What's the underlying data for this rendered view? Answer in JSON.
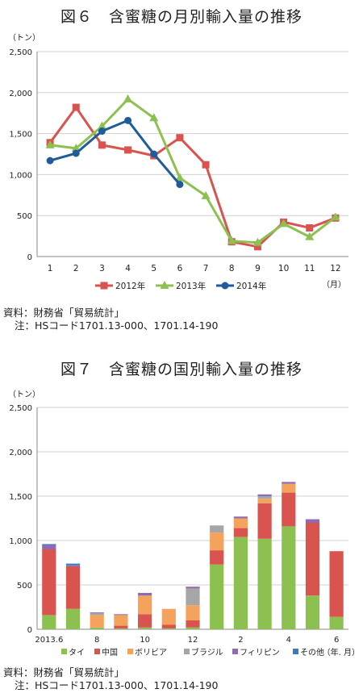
{
  "chart_data": [
    {
      "type": "line",
      "title": "図６　含蜜糖の月別輸入量の推移",
      "ylabel": "（トン）",
      "xlabel": "（月）",
      "x": [
        1,
        2,
        3,
        4,
        5,
        6,
        7,
        8,
        9,
        10,
        11,
        12
      ],
      "ylim": [
        0,
        2500
      ],
      "yticks": [
        0,
        500,
        1000,
        1500,
        2000,
        2500
      ],
      "ytick_labels": [
        "0",
        "500",
        "1,000",
        "1,500",
        "2,000",
        "2,500"
      ],
      "grid": true,
      "legend_position": "bottom",
      "series": [
        {
          "name": "2012年",
          "color": "#d9534f",
          "marker": "square",
          "values": [
            1390,
            1820,
            1360,
            1300,
            1230,
            1450,
            1120,
            180,
            120,
            420,
            350,
            470
          ]
        },
        {
          "name": "2013年",
          "color": "#8cc152",
          "marker": "triangle",
          "values": [
            1360,
            1320,
            1590,
            1920,
            1690,
            960,
            740,
            190,
            170,
            400,
            240,
            480
          ]
        },
        {
          "name": "2014年",
          "color": "#1f5c99",
          "marker": "circle",
          "values": [
            1170,
            1260,
            1530,
            1660,
            1250,
            880,
            null,
            null,
            null,
            null,
            null,
            null
          ]
        }
      ],
      "notes": [
        "資料：財務省「貿易統計」",
        "注：HSコード1701.13-000、1701.14-190"
      ]
    },
    {
      "type": "bar",
      "stacked": true,
      "title": "図７　含蜜糖の国別輸入量の推移",
      "ylabel": "（トン）",
      "xlabel": "（年. 月）",
      "categories": [
        "2013.6",
        "7",
        "8",
        "9",
        "10",
        "11",
        "12",
        "1",
        "2",
        "3",
        "4",
        "5",
        "6"
      ],
      "tick_labels": [
        "2013.6",
        "",
        "8",
        "",
        "10",
        "",
        "12",
        "",
        "2",
        "",
        "4",
        "",
        "6"
      ],
      "ylim": [
        0,
        2500
      ],
      "yticks": [
        0,
        500,
        1000,
        1500,
        2000,
        2500
      ],
      "ytick_labels": [
        "0",
        "500",
        "1,000",
        "1,500",
        "2,000",
        "2,500"
      ],
      "grid": true,
      "legend_position": "bottom",
      "series": [
        {
          "name": "タイ",
          "color": "#8cc152",
          "values": [
            160,
            230,
            20,
            10,
            20,
            10,
            20,
            730,
            1040,
            1020,
            1160,
            380,
            140
          ]
        },
        {
          "name": "中国",
          "color": "#d9534f",
          "values": [
            740,
            480,
            0,
            30,
            150,
            40,
            80,
            160,
            100,
            400,
            380,
            820,
            740
          ]
        },
        {
          "name": "ボリビア",
          "color": "#f5a35c",
          "values": [
            0,
            0,
            140,
            120,
            210,
            180,
            170,
            200,
            110,
            50,
            100,
            0,
            0
          ]
        },
        {
          "name": "ブラジル",
          "color": "#a6a6a6",
          "values": [
            0,
            0,
            20,
            0,
            0,
            0,
            190,
            80,
            0,
            30,
            0,
            0,
            0
          ]
        },
        {
          "name": "フィリピン",
          "color": "#8e6bb3",
          "values": [
            50,
            10,
            10,
            10,
            30,
            0,
            20,
            0,
            20,
            20,
            20,
            40,
            0
          ]
        },
        {
          "name": "その他",
          "color": "#3a7cc2",
          "values": [
            10,
            20,
            0,
            0,
            0,
            0,
            0,
            0,
            0,
            0,
            0,
            0,
            0
          ]
        }
      ],
      "notes": [
        "資料：財務省「貿易統計」",
        "注：HSコード1701.13-000、1701.14-190"
      ]
    }
  ]
}
